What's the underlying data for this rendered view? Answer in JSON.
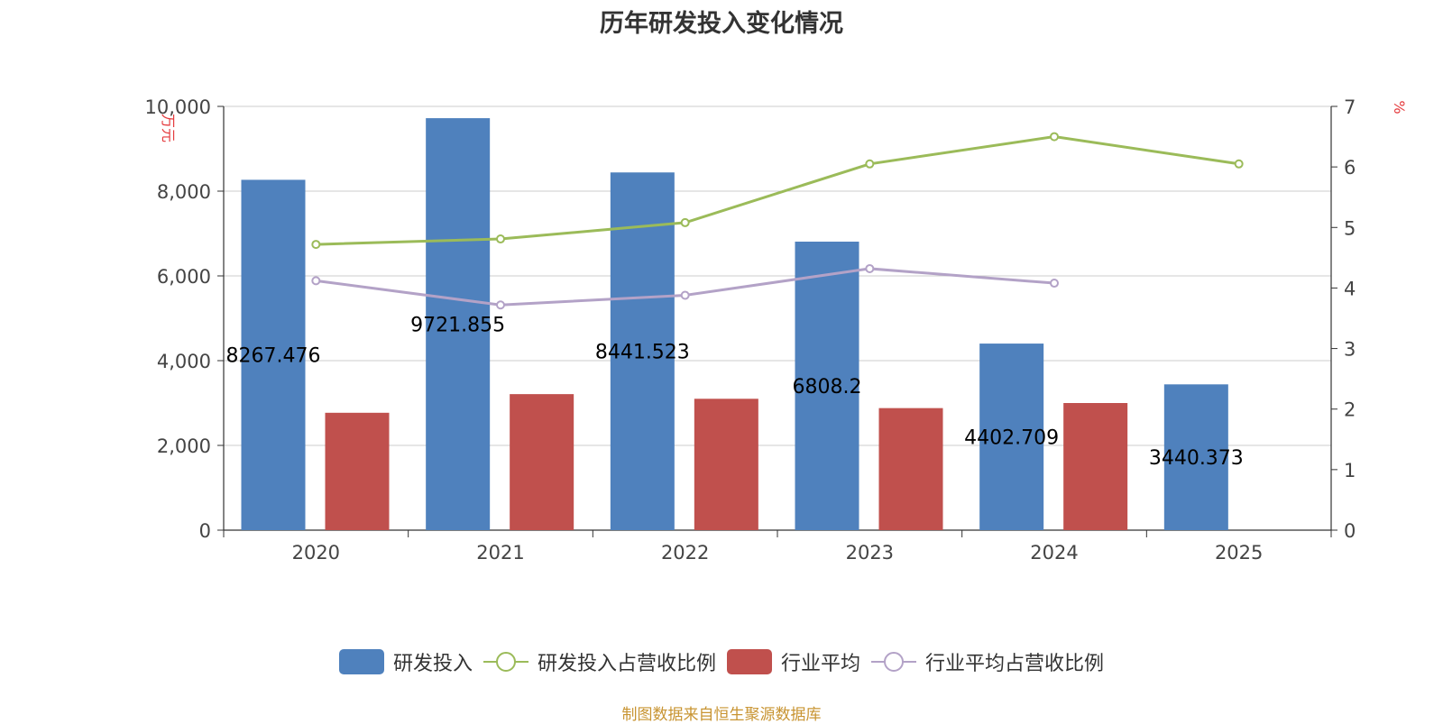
{
  "chart_data": {
    "type": "bar",
    "title": "历年研发投入变化情况",
    "categories": [
      "2020",
      "2021",
      "2022",
      "2023",
      "2024",
      "2025"
    ],
    "y_left": {
      "unit": "万元",
      "min": 0,
      "max": 10000,
      "ticks": [
        0,
        2000,
        4000,
        6000,
        8000,
        10000
      ],
      "tick_labels": [
        "0",
        "2,000",
        "4,000",
        "6,000",
        "8,000",
        "10,000"
      ]
    },
    "y_right": {
      "unit": "%",
      "min": 0,
      "max": 7,
      "ticks": [
        0,
        1,
        2,
        3,
        4,
        5,
        6,
        7
      ],
      "tick_labels": [
        "0",
        "1",
        "2",
        "3",
        "4",
        "5",
        "6",
        "7"
      ]
    },
    "grid": true,
    "legend_position": "bottom",
    "series": [
      {
        "name": "研发投入",
        "type": "bar",
        "axis": "left",
        "color": "#4f81bd",
        "values": [
          8267.476,
          9721.855,
          8441.523,
          6808.2,
          4402.709,
          3440.373
        ],
        "labels": [
          "8267.476",
          "9721.855",
          "8441.523",
          "6808.2",
          "4402.709",
          "3440.373"
        ]
      },
      {
        "name": "研发投入占营收比例",
        "type": "line",
        "axis": "right",
        "color": "#9bbb59",
        "values": [
          4.72,
          4.81,
          5.08,
          6.05,
          6.5,
          6.05
        ]
      },
      {
        "name": "行业平均",
        "type": "bar",
        "axis": "left",
        "color": "#c0504d",
        "values": [
          2770,
          3210,
          3100,
          2880,
          3000,
          null
        ]
      },
      {
        "name": "行业平均占营收比例",
        "type": "line",
        "axis": "right",
        "color": "#b3a2c7",
        "values": [
          4.12,
          3.72,
          3.88,
          4.32,
          4.08,
          null
        ]
      }
    ]
  },
  "legend": [
    {
      "label": "研发投入",
      "kind": "bar",
      "color": "#4f81bd"
    },
    {
      "label": "研发投入占营收比例",
      "kind": "line",
      "color": "#9bbb59"
    },
    {
      "label": "行业平均",
      "kind": "bar",
      "color": "#c0504d"
    },
    {
      "label": "行业平均占营收比例",
      "kind": "line",
      "color": "#b3a2c7"
    }
  ],
  "source_note": "制图数据来自恒生聚源数据库"
}
